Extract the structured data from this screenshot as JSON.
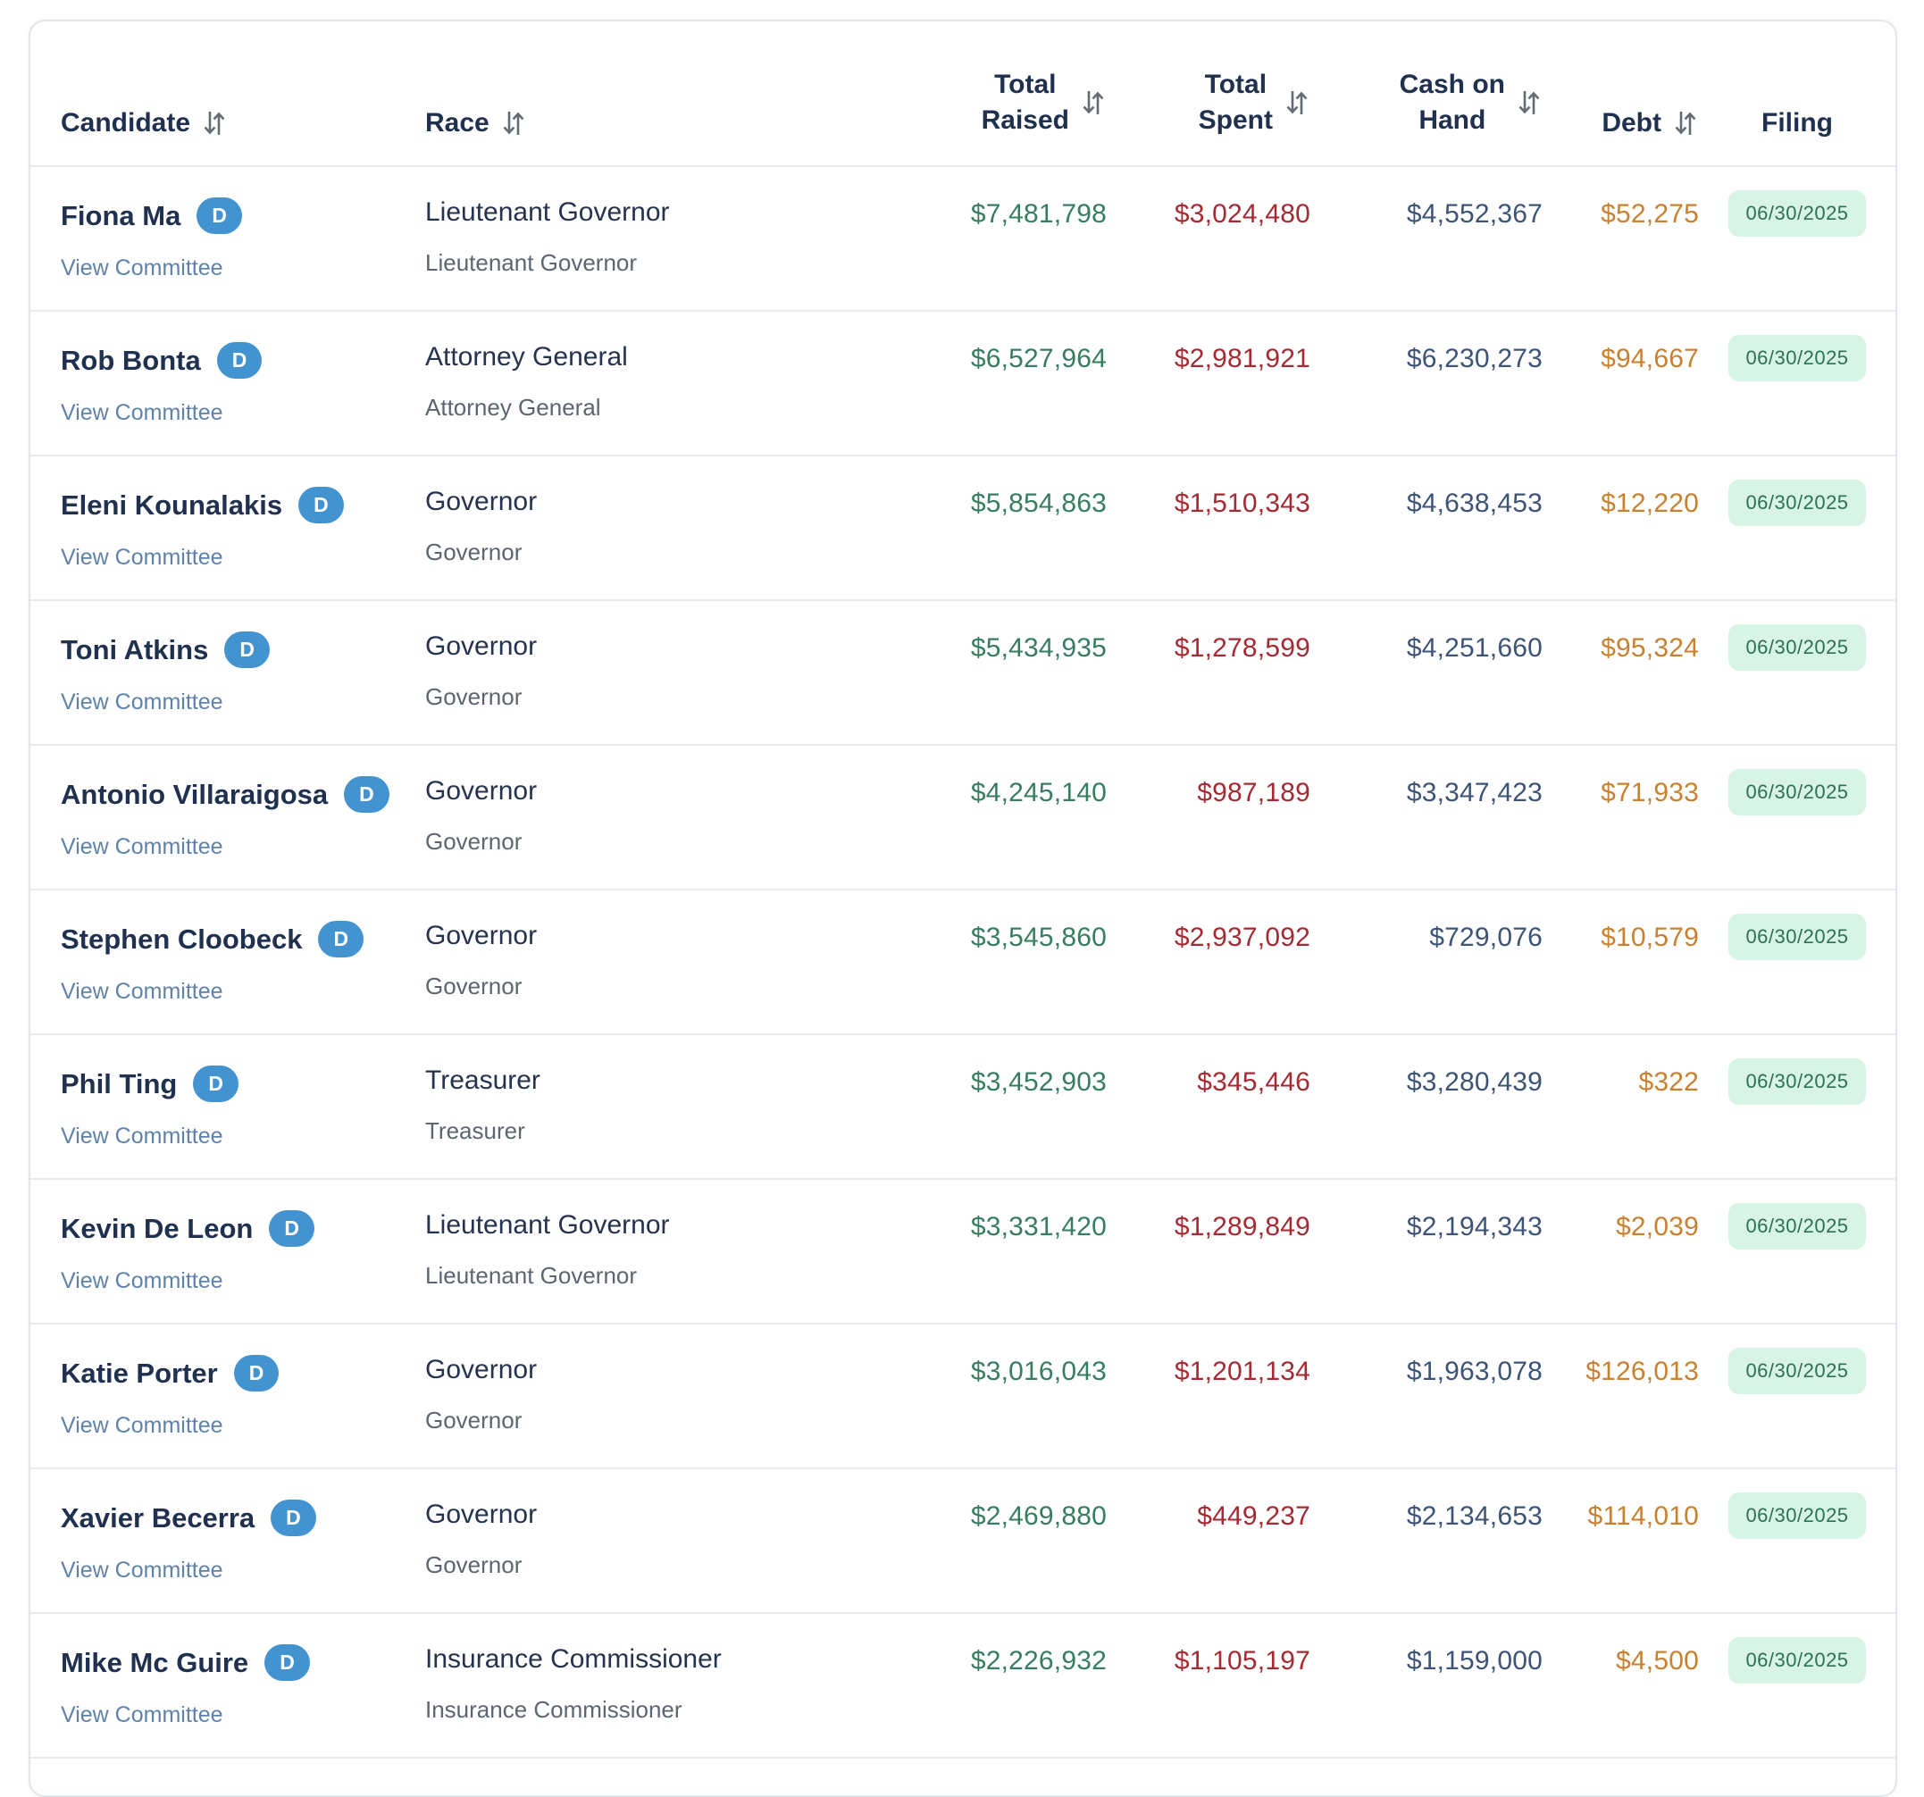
{
  "header": {
    "candidate": {
      "label": "Candidate",
      "sortable": true
    },
    "race": {
      "label": "Race",
      "sortable": true
    },
    "total_raised": {
      "label_line1": "Total",
      "label_line2": "Raised",
      "sortable": true
    },
    "total_spent": {
      "label_line1": "Total",
      "label_line2": "Spent",
      "sortable": true
    },
    "cash_on_hand": {
      "label_line1": "Cash on",
      "label_line2": "Hand",
      "sortable": true
    },
    "debt": {
      "label": "Debt",
      "sortable": true
    },
    "filing": {
      "label": "Filing",
      "sortable": false
    }
  },
  "colors": {
    "heading_navy": "#20304f",
    "raised_green": "#377d60",
    "spent_red": "#a52a33",
    "cash_navy": "#3d5476",
    "debt_orange": "#c9812f",
    "badge_mint_bg": "#d7f4e7",
    "badge_mint_text": "#2e7058",
    "party_badge_blue": "#4493d1",
    "link_blue": "#5e82a8"
  },
  "rows": [
    {
      "candidate": "Fiona Ma",
      "party": "D",
      "view_committee_label": "View Committee",
      "race": "Lieutenant Governor",
      "race_subtitle": "Lieutenant Governor",
      "total_raised": "$7,481,798",
      "total_spent": "$3,024,480",
      "cash_on_hand": "$4,552,367",
      "debt": "$52,275",
      "filing_date": "06/30/2025"
    },
    {
      "candidate": "Rob Bonta",
      "party": "D",
      "view_committee_label": "View Committee",
      "race": "Attorney General",
      "race_subtitle": "Attorney General",
      "total_raised": "$6,527,964",
      "total_spent": "$2,981,921",
      "cash_on_hand": "$6,230,273",
      "debt": "$94,667",
      "filing_date": "06/30/2025"
    },
    {
      "candidate": "Eleni Kounalakis",
      "party": "D",
      "view_committee_label": "View Committee",
      "race": "Governor",
      "race_subtitle": "Governor",
      "total_raised": "$5,854,863",
      "total_spent": "$1,510,343",
      "cash_on_hand": "$4,638,453",
      "debt": "$12,220",
      "filing_date": "06/30/2025"
    },
    {
      "candidate": "Toni Atkins",
      "party": "D",
      "view_committee_label": "View Committee",
      "race": "Governor",
      "race_subtitle": "Governor",
      "total_raised": "$5,434,935",
      "total_spent": "$1,278,599",
      "cash_on_hand": "$4,251,660",
      "debt": "$95,324",
      "filing_date": "06/30/2025"
    },
    {
      "candidate": "Antonio Villaraigosa",
      "party": "D",
      "view_committee_label": "View Committee",
      "race": "Governor",
      "race_subtitle": "Governor",
      "total_raised": "$4,245,140",
      "total_spent": "$987,189",
      "cash_on_hand": "$3,347,423",
      "debt": "$71,933",
      "filing_date": "06/30/2025"
    },
    {
      "candidate": "Stephen Cloobeck",
      "party": "D",
      "view_committee_label": "View Committee",
      "race": "Governor",
      "race_subtitle": "Governor",
      "total_raised": "$3,545,860",
      "total_spent": "$2,937,092",
      "cash_on_hand": "$729,076",
      "debt": "$10,579",
      "filing_date": "06/30/2025"
    },
    {
      "candidate": "Phil Ting",
      "party": "D",
      "view_committee_label": "View Committee",
      "race": "Treasurer",
      "race_subtitle": "Treasurer",
      "total_raised": "$3,452,903",
      "total_spent": "$345,446",
      "cash_on_hand": "$3,280,439",
      "debt": "$322",
      "filing_date": "06/30/2025"
    },
    {
      "candidate": "Kevin De Leon",
      "party": "D",
      "view_committee_label": "View Committee",
      "race": "Lieutenant Governor",
      "race_subtitle": "Lieutenant Governor",
      "total_raised": "$3,331,420",
      "total_spent": "$1,289,849",
      "cash_on_hand": "$2,194,343",
      "debt": "$2,039",
      "filing_date": "06/30/2025"
    },
    {
      "candidate": "Katie Porter",
      "party": "D",
      "view_committee_label": "View Committee",
      "race": "Governor",
      "race_subtitle": "Governor",
      "total_raised": "$3,016,043",
      "total_spent": "$1,201,134",
      "cash_on_hand": "$1,963,078",
      "debt": "$126,013",
      "filing_date": "06/30/2025"
    },
    {
      "candidate": "Xavier Becerra",
      "party": "D",
      "view_committee_label": "View Committee",
      "race": "Governor",
      "race_subtitle": "Governor",
      "total_raised": "$2,469,880",
      "total_spent": "$449,237",
      "cash_on_hand": "$2,134,653",
      "debt": "$114,010",
      "filing_date": "06/30/2025"
    },
    {
      "candidate": "Mike Mc Guire",
      "party": "D",
      "view_committee_label": "View Committee",
      "race": "Insurance Commissioner",
      "race_subtitle": "Insurance Commissioner",
      "total_raised": "$2,226,932",
      "total_spent": "$1,105,197",
      "cash_on_hand": "$1,159,000",
      "debt": "$4,500",
      "filing_date": "06/30/2025"
    }
  ]
}
